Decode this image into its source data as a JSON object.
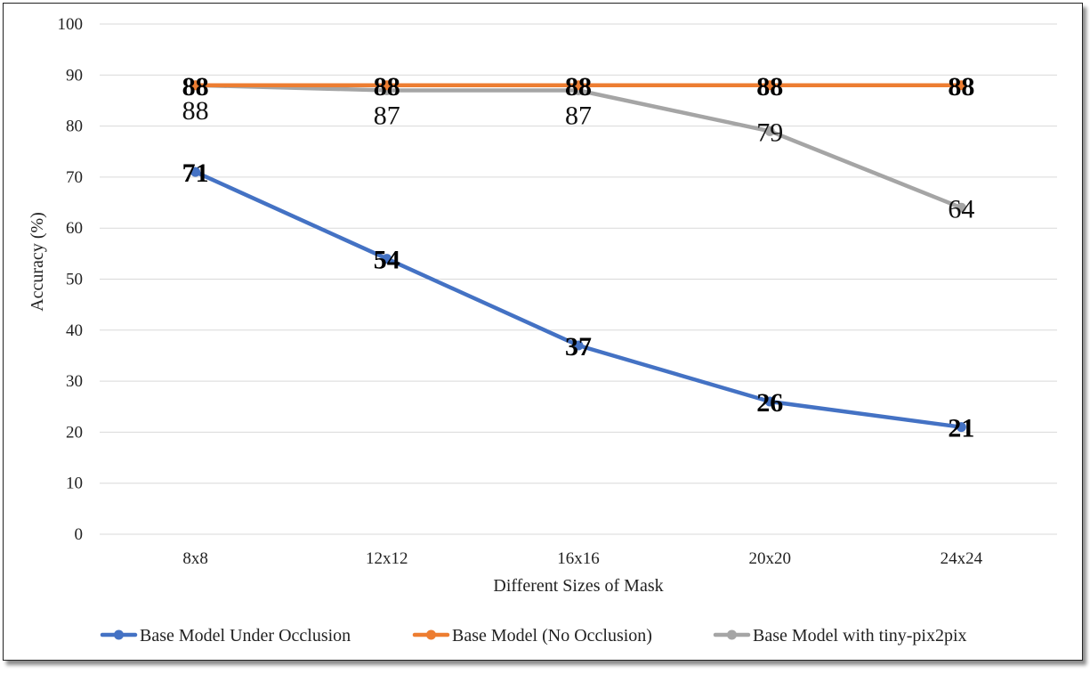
{
  "chart_data": {
    "type": "line",
    "title": "",
    "xlabel": "Different Sizes of Mask",
    "ylabel": "Accuracy (%)",
    "ylim": [
      0,
      100
    ],
    "yticks": [
      0,
      10,
      20,
      30,
      40,
      50,
      60,
      70,
      80,
      90,
      100
    ],
    "categories": [
      "8x8",
      "12x12",
      "16x16",
      "20x20",
      "24x24"
    ],
    "grid": true,
    "legend_position": "bottom",
    "series": [
      {
        "name": "Base Model Under Occlusion",
        "color": "#4472C4",
        "values": [
          71,
          54,
          37,
          26,
          21
        ],
        "labels": [
          "71",
          "54",
          "37",
          "26",
          "21"
        ],
        "label_style": "bold"
      },
      {
        "name": "Base Model (No Occlusion)",
        "color": "#ED7D31",
        "values": [
          88,
          88,
          88,
          88,
          88
        ],
        "labels": [
          "88",
          "88",
          "88",
          "88",
          "88"
        ],
        "label_style": "bold"
      },
      {
        "name": "Base Model with tiny-pix2pix",
        "color": "#A5A5A5",
        "values": [
          88,
          87,
          87,
          79,
          64
        ],
        "labels": [
          "88",
          "87",
          "87",
          "79",
          "64"
        ],
        "label_style": "plain"
      }
    ]
  }
}
